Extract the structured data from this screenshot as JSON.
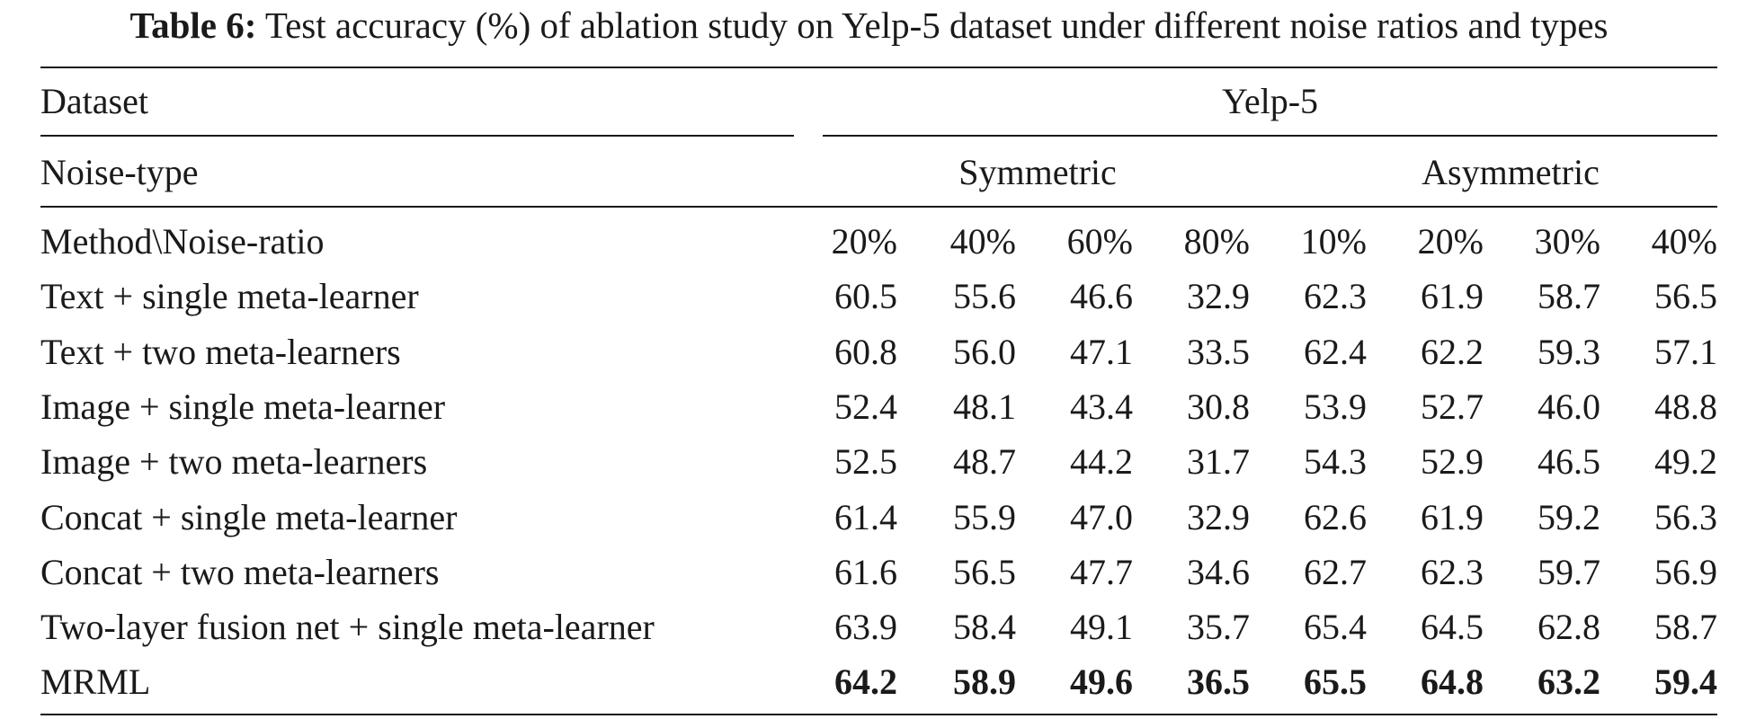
{
  "caption": {
    "label": "Table 6:",
    "text": "Test accuracy (%) of ablation study on Yelp-5 dataset under different noise ratios and types"
  },
  "header": {
    "dataset_label": "Dataset",
    "dataset_value": "Yelp-5",
    "noise_type_label": "Noise-type",
    "symmetric_label": "Symmetric",
    "asymmetric_label": "Asymmetric",
    "method_label": "Method\\Noise-ratio",
    "ratios": [
      "20%",
      "40%",
      "60%",
      "80%",
      "10%",
      "20%",
      "30%",
      "40%"
    ]
  },
  "rows": [
    {
      "method": "Text + single meta-learner",
      "values": [
        "60.5",
        "55.6",
        "46.6",
        "32.9",
        "62.3",
        "61.9",
        "58.7",
        "56.5"
      ],
      "bold": false
    },
    {
      "method": "Text + two meta-learners",
      "values": [
        "60.8",
        "56.0",
        "47.1",
        "33.5",
        "62.4",
        "62.2",
        "59.3",
        "57.1"
      ],
      "bold": false
    },
    {
      "method": "Image + single meta-learner",
      "values": [
        "52.4",
        "48.1",
        "43.4",
        "30.8",
        "53.9",
        "52.7",
        "46.0",
        "48.8"
      ],
      "bold": false
    },
    {
      "method": "Image + two meta-learners",
      "values": [
        "52.5",
        "48.7",
        "44.2",
        "31.7",
        "54.3",
        "52.9",
        "46.5",
        "49.2"
      ],
      "bold": false
    },
    {
      "method": "Concat + single meta-learner",
      "values": [
        "61.4",
        "55.9",
        "47.0",
        "32.9",
        "62.6",
        "61.9",
        "59.2",
        "56.3"
      ],
      "bold": false
    },
    {
      "method": "Concat + two meta-learners",
      "values": [
        "61.6",
        "56.5",
        "47.7",
        "34.6",
        "62.7",
        "62.3",
        "59.7",
        "56.9"
      ],
      "bold": false
    },
    {
      "method": "Two-layer fusion net + single meta-learner",
      "values": [
        "63.9",
        "58.4",
        "49.1",
        "35.7",
        "65.4",
        "64.5",
        "62.8",
        "58.7"
      ],
      "bold": false
    },
    {
      "method": "MRML",
      "values": [
        "64.2",
        "58.9",
        "49.6",
        "36.5",
        "65.5",
        "64.8",
        "63.2",
        "59.4"
      ],
      "bold": true
    }
  ]
}
